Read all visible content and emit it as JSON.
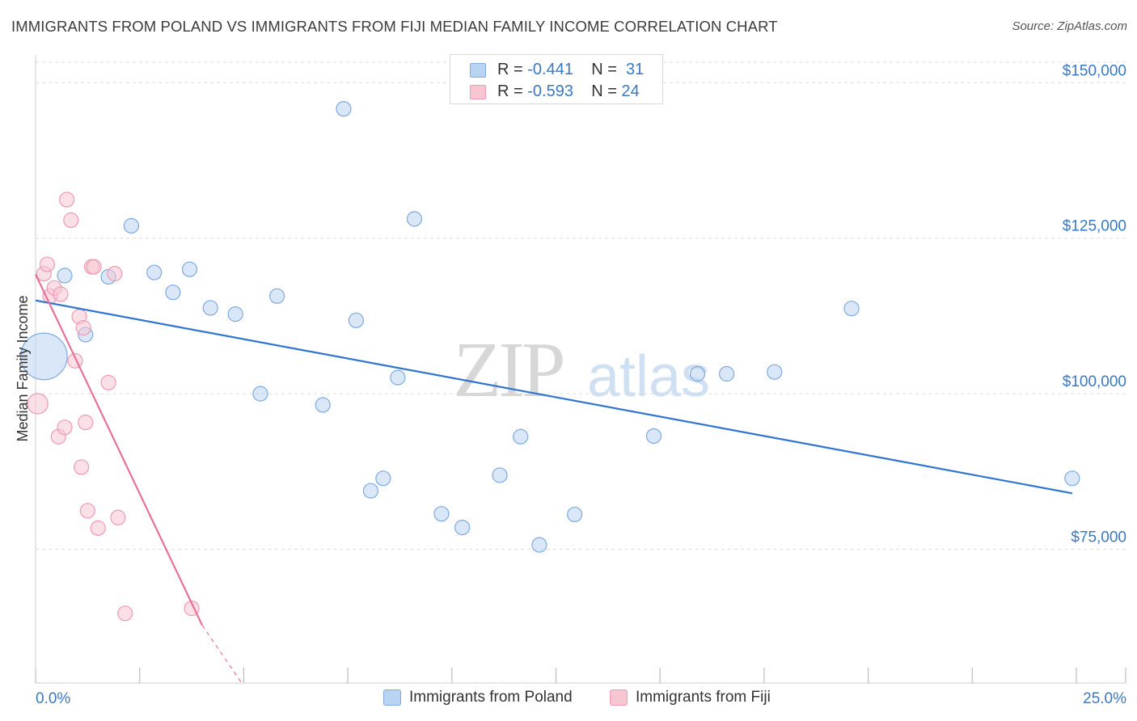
{
  "title": "IMMIGRANTS FROM POLAND VS IMMIGRANTS FROM FIJI MEDIAN FAMILY INCOME CORRELATION CHART",
  "source": "Source: ZipAtlas.com",
  "watermark": {
    "zip": "ZIP",
    "atlas": "atlas"
  },
  "colors": {
    "poland_fill": "#b9d4f3",
    "poland_stroke": "#7eaae0",
    "poland_line": "#2f74d0",
    "fiji_fill": "#f8c6d3",
    "fiji_stroke": "#ee9ab2",
    "fiji_line": "#e8709a",
    "tick_text": "#3b78c4",
    "grid": "#dcdcdc"
  },
  "stats_legend": {
    "rows": [
      {
        "r_label": "R = ",
        "r_value": "-0.441",
        "n_label": "N = ",
        "n_value": "31"
      },
      {
        "r_label": "R = ",
        "r_value": "-0.593",
        "n_label": "N = ",
        "n_value": "24"
      }
    ]
  },
  "chart_data": {
    "type": "scatter",
    "title": "IMMIGRANTS FROM POLAND VS IMMIGRANTS FROM FIJI MEDIAN FAMILY INCOME CORRELATION CHART",
    "xlabel": "",
    "ylabel": "Median Family Income",
    "xlim": [
      0,
      25
    ],
    "ylim": [
      53500,
      155500
    ],
    "x_tick_labels": [
      "0.0%",
      "25.0%"
    ],
    "y_ticks": [
      75000,
      100000,
      125000,
      150000
    ],
    "y_tick_labels": [
      "$75,000",
      "$100,000",
      "$125,000",
      "$150,000"
    ],
    "grid": true,
    "legend_position": "bottom-center",
    "series": [
      {
        "name": "Immigrants from Poland",
        "r": -0.441,
        "n": 31,
        "points": [
          [
            0.2,
            106000,
            3.2
          ],
          [
            0.7,
            119000,
            1
          ],
          [
            1.2,
            109500,
            1
          ],
          [
            1.75,
            118800,
            1
          ],
          [
            2.3,
            127000,
            1
          ],
          [
            2.85,
            119500,
            1
          ],
          [
            3.3,
            116300,
            1
          ],
          [
            3.7,
            120000,
            1
          ],
          [
            4.2,
            113800,
            1
          ],
          [
            4.8,
            112800,
            1
          ],
          [
            5.4,
            100000,
            1
          ],
          [
            5.8,
            115700,
            1
          ],
          [
            6.9,
            98200,
            1
          ],
          [
            7.4,
            145800,
            1
          ],
          [
            7.7,
            111800,
            1
          ],
          [
            8.05,
            84400,
            1
          ],
          [
            8.35,
            86400,
            1
          ],
          [
            8.7,
            102600,
            1
          ],
          [
            9.1,
            128100,
            1
          ],
          [
            9.75,
            80700,
            1
          ],
          [
            10.25,
            78500,
            1
          ],
          [
            11.15,
            86900,
            1
          ],
          [
            11.65,
            93100,
            1
          ],
          [
            12.1,
            75700,
            1
          ],
          [
            12.95,
            80600,
            1
          ],
          [
            14.85,
            93200,
            1
          ],
          [
            15.9,
            103200,
            1
          ],
          [
            16.6,
            103200,
            1
          ],
          [
            17.75,
            103500,
            1
          ],
          [
            19.6,
            113700,
            1
          ],
          [
            24.9,
            86400,
            1
          ]
        ],
        "trend": {
          "x_start": 0,
          "y_start": 115000,
          "x_end": 24.9,
          "y_end": 84000
        }
      },
      {
        "name": "Immigrants from Fiji",
        "r": -0.593,
        "n": 24,
        "points": [
          [
            0.05,
            98400,
            1.4
          ],
          [
            0.2,
            119300,
            1
          ],
          [
            0.28,
            120800,
            1
          ],
          [
            0.35,
            115700,
            1
          ],
          [
            0.45,
            117000,
            1
          ],
          [
            0.55,
            93100,
            1
          ],
          [
            0.6,
            116000,
            1
          ],
          [
            0.7,
            94600,
            1
          ],
          [
            0.75,
            131200,
            1
          ],
          [
            0.85,
            127900,
            1
          ],
          [
            0.95,
            105300,
            1
          ],
          [
            1.05,
            112400,
            1
          ],
          [
            1.1,
            88200,
            1
          ],
          [
            1.15,
            110600,
            1
          ],
          [
            1.2,
            95400,
            1
          ],
          [
            1.25,
            81200,
            1
          ],
          [
            1.35,
            120400,
            1
          ],
          [
            1.4,
            120400,
            1
          ],
          [
            1.5,
            78400,
            1
          ],
          [
            1.75,
            101800,
            1
          ],
          [
            1.9,
            119300,
            1
          ],
          [
            1.98,
            80100,
            1
          ],
          [
            2.15,
            64700,
            1
          ],
          [
            3.75,
            65500,
            1
          ]
        ],
        "trend": {
          "x_start": 0,
          "y_start": 119200,
          "x_end": 4.0,
          "y_end": 62800,
          "x_dash_end": 4.95,
          "y_dash_end": 53500
        }
      }
    ]
  }
}
